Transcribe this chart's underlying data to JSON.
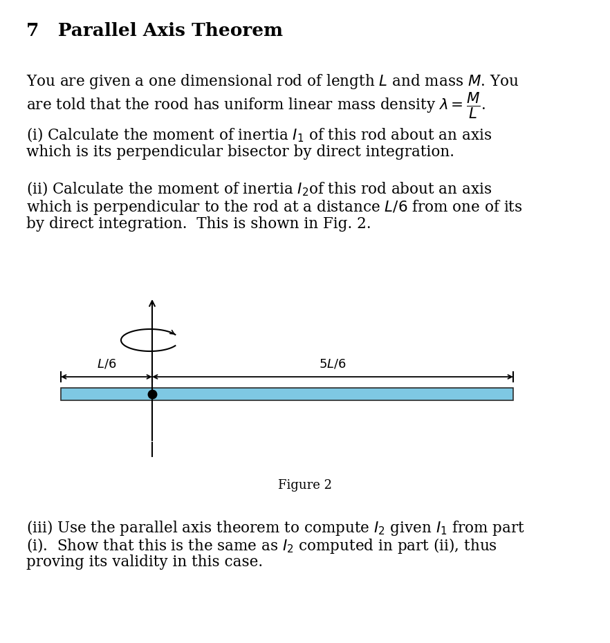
{
  "title": "7   Parallel Axis Theorem",
  "bg_color": "#ffffff",
  "text_color": "#000000",
  "rod_color": "#7ec8e3",
  "rod_border_color": "#2a2a2a",
  "fig_width": 8.82,
  "fig_height": 9.3,
  "para1_line1": "You are given a one dimensional rod of length $L$ and mass $M$. You",
  "para1_line2": "are told that the rood has uniform linear mass density $\\lambda = \\dfrac{M}{L}$.",
  "para2_line1": "(i) Calculate the moment of inertia $I_1$ of this rod about an axis",
  "para2_line2": "which is its perpendicular bisector by direct integration.",
  "para3_line1": "(ii) Calculate the moment of inertia $I_2$of this rod about an axis",
  "para3_line2": "which is perpendicular to the rod at a distance $L/6$ from one of its",
  "para3_line3": "by direct integration.  This is shown in Fig. 2.",
  "fig_caption": "Figure 2",
  "para4_line1": "(iii) Use the parallel axis theorem to compute $I_2$ given $I_1$ from part",
  "para4_line2": "(i).  Show that this is the same as $I_2$ computed in part (ii), thus",
  "para4_line3": "proving its validity in this case."
}
